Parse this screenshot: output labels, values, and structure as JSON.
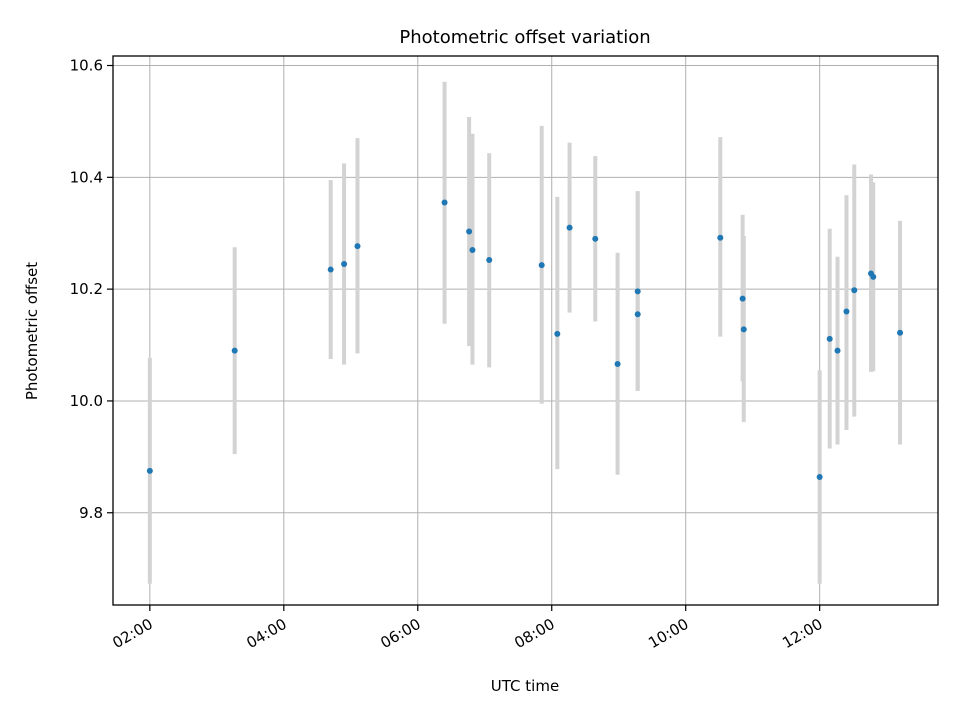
{
  "chart_data": {
    "type": "scatter",
    "title": "Photometric offset variation",
    "xlabel": "UTC time",
    "ylabel": "Photometric offset",
    "xlim": [
      "01:27",
      "13:46"
    ],
    "ylim": [
      9.635,
      10.617
    ],
    "x_ticks": [
      "02:00",
      "04:00",
      "06:00",
      "08:00",
      "10:00",
      "12:00"
    ],
    "y_ticks": [
      9.8,
      10.0,
      10.2,
      10.4,
      10.6
    ],
    "y_tick_labels": [
      "9.8",
      "10.0",
      "10.2",
      "10.4",
      "10.6"
    ],
    "grid": true,
    "colors": {
      "marker": "#1f77b4",
      "errorbar": "#d3d3d3",
      "grid": "#b0b0b0"
    },
    "series": [
      {
        "points": [
          {
            "t": "02:00",
            "y": 9.875,
            "ylow": 9.673,
            "yhigh": 10.077
          },
          {
            "t": "03:16",
            "y": 10.09,
            "ylow": 9.905,
            "yhigh": 10.275
          },
          {
            "t": "04:42",
            "y": 10.235,
            "ylow": 10.075,
            "yhigh": 10.395
          },
          {
            "t": "04:54",
            "y": 10.245,
            "ylow": 10.065,
            "yhigh": 10.425
          },
          {
            "t": "05:06",
            "y": 10.277,
            "ylow": 10.085,
            "yhigh": 10.47
          },
          {
            "t": "06:24",
            "y": 10.355,
            "ylow": 10.138,
            "yhigh": 10.571
          },
          {
            "t": "06:46",
            "y": 10.303,
            "ylow": 10.098,
            "yhigh": 10.508
          },
          {
            "t": "06:49",
            "y": 10.27,
            "ylow": 10.065,
            "yhigh": 10.478
          },
          {
            "t": "07:04",
            "y": 10.252,
            "ylow": 10.06,
            "yhigh": 10.443
          },
          {
            "t": "07:51",
            "y": 10.243,
            "ylow": 9.995,
            "yhigh": 10.492
          },
          {
            "t": "08:05",
            "y": 10.12,
            "ylow": 9.878,
            "yhigh": 10.365
          },
          {
            "t": "08:16",
            "y": 10.31,
            "ylow": 10.158,
            "yhigh": 10.462
          },
          {
            "t": "08:39",
            "y": 10.29,
            "ylow": 10.142,
            "yhigh": 10.438
          },
          {
            "t": "08:59",
            "y": 10.066,
            "ylow": 9.868,
            "yhigh": 10.265
          },
          {
            "t": "09:17",
            "y": 10.196,
            "ylow": 10.018,
            "yhigh": 10.375
          },
          {
            "t": "09:17",
            "y": 10.155,
            "ylow": 10.018,
            "yhigh": 10.375
          },
          {
            "t": "10:31",
            "y": 10.292,
            "ylow": 10.115,
            "yhigh": 10.472
          },
          {
            "t": "10:51",
            "y": 10.183,
            "ylow": 10.035,
            "yhigh": 10.333
          },
          {
            "t": "10:52",
            "y": 10.128,
            "ylow": 9.962,
            "yhigh": 10.295
          },
          {
            "t": "12:00",
            "y": 9.864,
            "ylow": 9.673,
            "yhigh": 10.055
          },
          {
            "t": "12:09",
            "y": 10.111,
            "ylow": 9.915,
            "yhigh": 10.308
          },
          {
            "t": "12:16",
            "y": 10.09,
            "ylow": 9.922,
            "yhigh": 10.258
          },
          {
            "t": "12:24",
            "y": 10.16,
            "ylow": 9.948,
            "yhigh": 10.368
          },
          {
            "t": "12:31",
            "y": 10.198,
            "ylow": 9.972,
            "yhigh": 10.423
          },
          {
            "t": "12:46",
            "y": 10.228,
            "ylow": 10.052,
            "yhigh": 10.405
          },
          {
            "t": "12:48",
            "y": 10.222,
            "ylow": 10.053,
            "yhigh": 10.391
          },
          {
            "t": "13:12",
            "y": 10.122,
            "ylow": 9.922,
            "yhigh": 10.322
          }
        ]
      }
    ]
  }
}
